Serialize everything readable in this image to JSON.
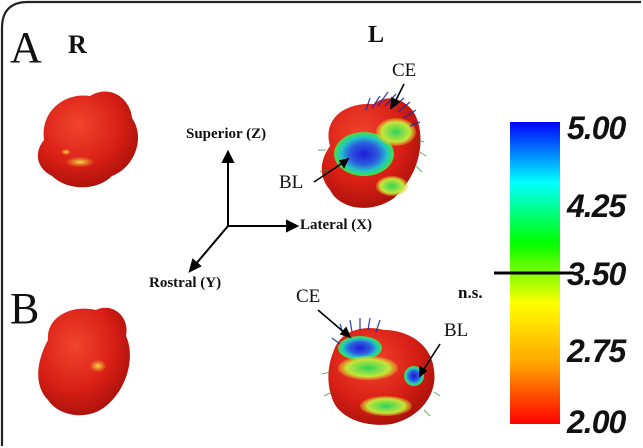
{
  "panels": {
    "a": "A",
    "b": "B"
  },
  "sides": {
    "right": "R",
    "left": "L"
  },
  "axes": {
    "superior": "Superior (Z)",
    "lateral": "Lateral (X)",
    "rostral": "Rostral (Y)"
  },
  "structures": {
    "ce_top": "CE",
    "bl_top": "BL",
    "ce_bottom": "CE",
    "bl_bottom": "BL"
  },
  "colorbar": {
    "ticks": [
      "5.00",
      "4.25",
      "3.50",
      "2.75",
      "2.00"
    ],
    "threshold_label": "n.s.",
    "threshold_value": 3.5,
    "range": [
      2.0,
      5.0
    ],
    "colors": [
      "#ff0000",
      "#ffa500",
      "#ffff00",
      "#00ff00",
      "#00ffff",
      "#0000ff"
    ]
  },
  "surface_color": "#e3241b"
}
